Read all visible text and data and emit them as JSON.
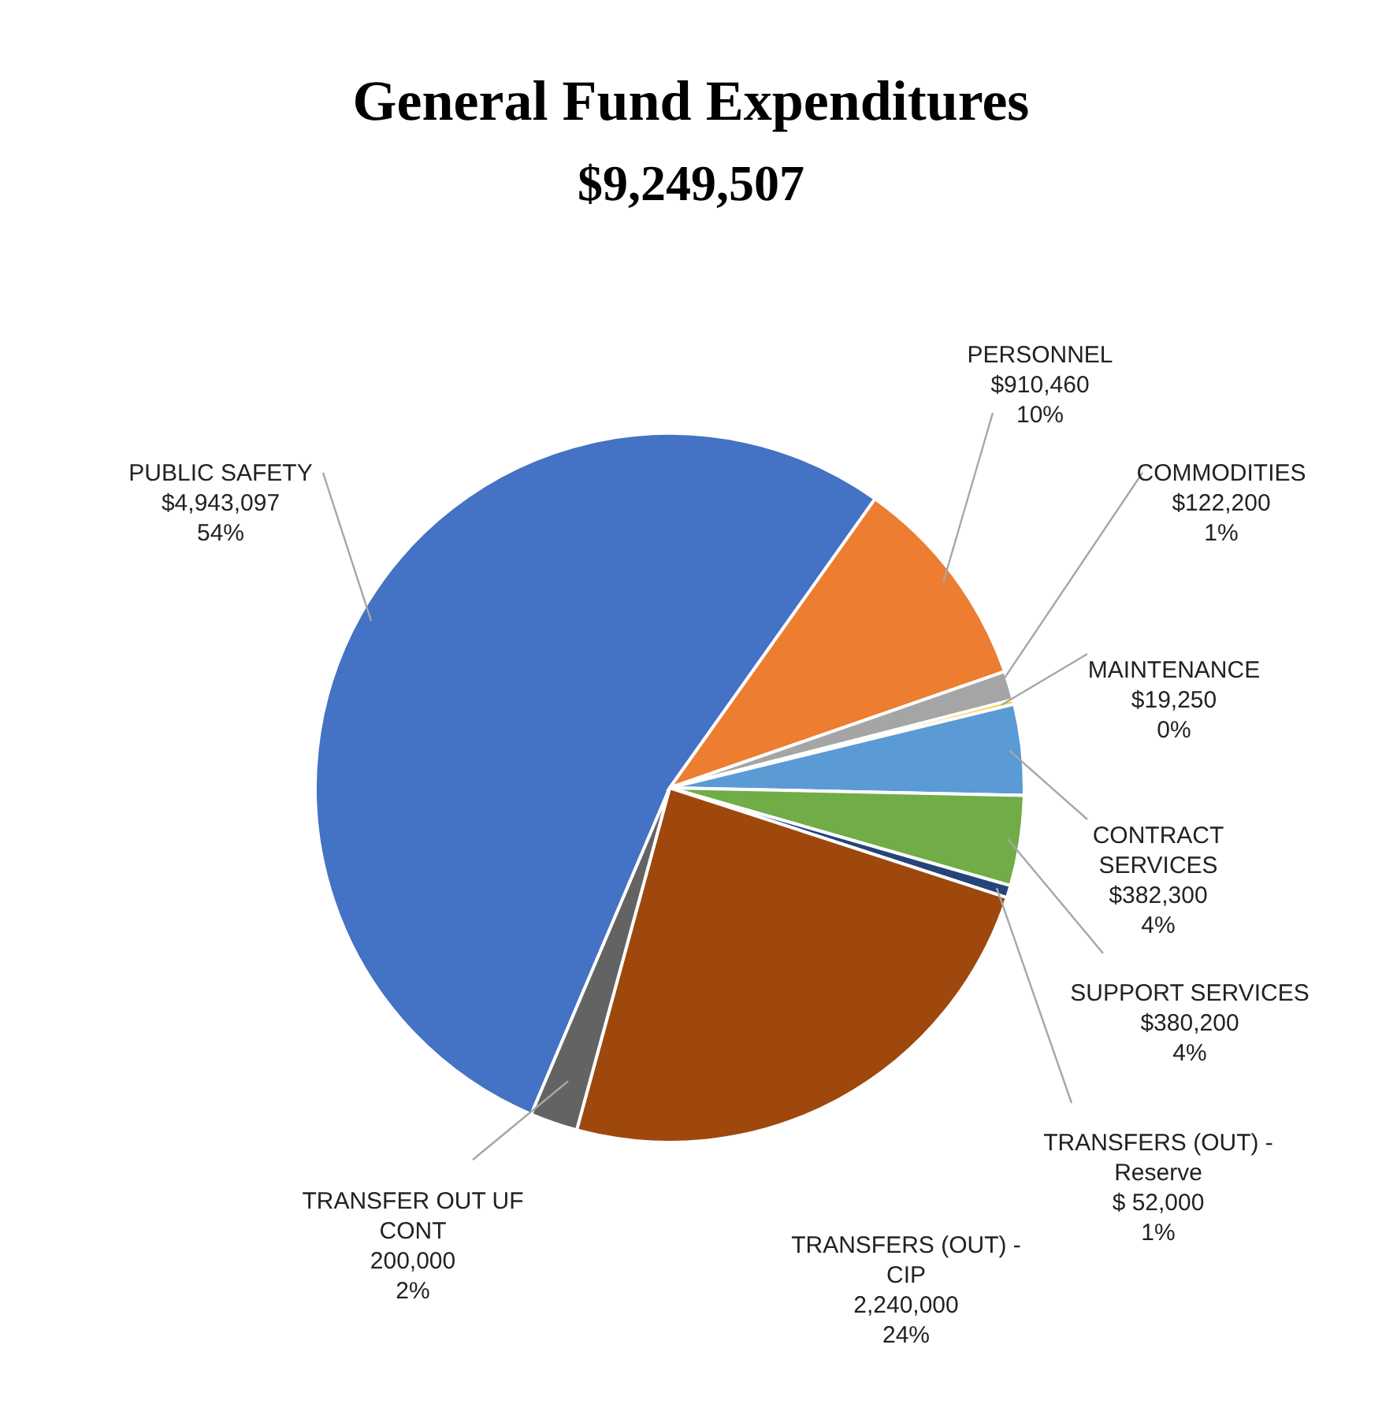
{
  "chart_data": {
    "type": "pie",
    "title": "General Fund Expenditures",
    "subtitle": "$9,249,507",
    "categories": [
      "PUBLIC SAFETY",
      "PERSONNEL",
      "COMMODITIES",
      "MAINTENANCE",
      "CONTRACT SERVICES",
      "SUPPORT SERVICES",
      "TRANSFERS (OUT) - Reserve",
      "TRANSFERS (OUT) - CIP",
      "TRANSFER OUT UF CONT"
    ],
    "values": [
      4943097,
      910460,
      122200,
      19250,
      382300,
      380200,
      52000,
      2240000,
      200000
    ],
    "colors": [
      "#4472c4",
      "#ed7d31",
      "#a5a5a5",
      "#ffc000",
      "#5b9bd5",
      "#70ad47",
      "#264478",
      "#9e480e",
      "#636363"
    ],
    "value_labels": [
      "$4,943,097\n54%",
      "$910,460\n10%",
      "$122,200\n1%",
      "$19,250\n0%",
      "$382,300\n4%",
      "$380,200\n4%",
      "$ 52,000\n1%",
      "2,240,000\n24%",
      "200,000\n2%"
    ]
  }
}
